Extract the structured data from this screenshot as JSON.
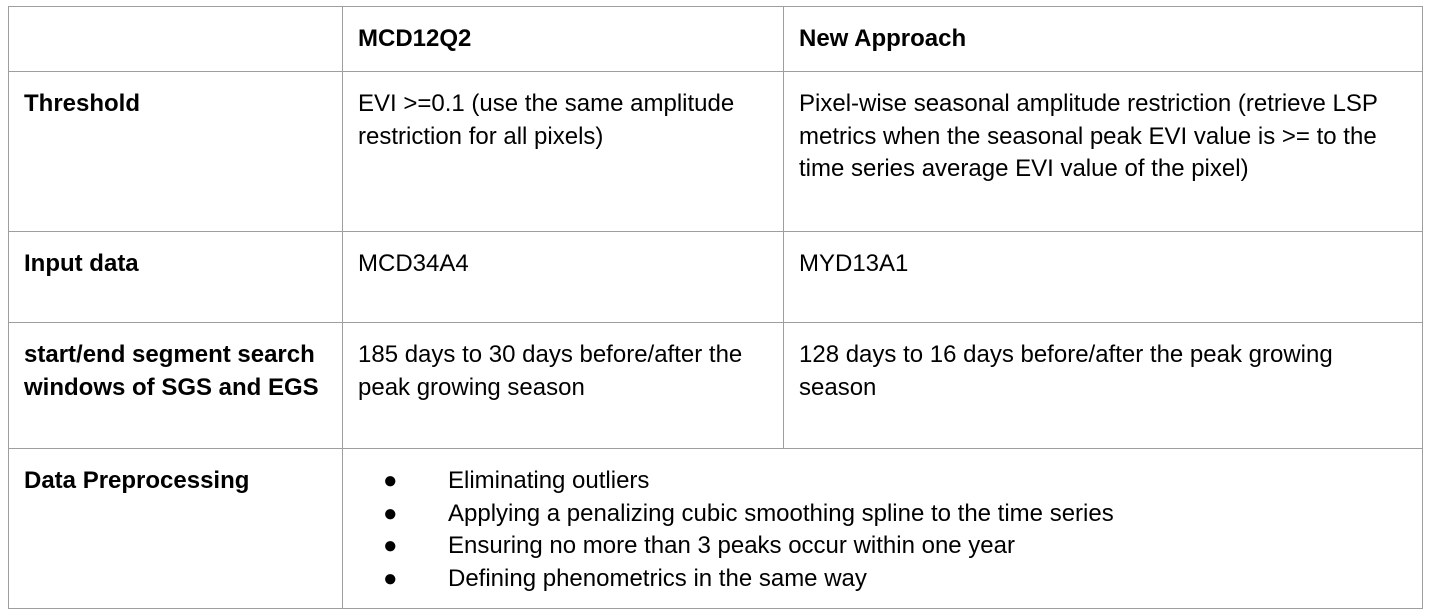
{
  "header": {
    "col1": "",
    "col2": "MCD12Q2",
    "col3": "New Approach"
  },
  "rows": [
    {
      "label": "Threshold",
      "mcd12q2": "EVI >=0.1 (use the same amplitude restriction for all pixels)",
      "new_approach": "Pixel-wise seasonal amplitude restriction (retrieve LSP metrics when the seasonal peak EVI value is >= to the time series average EVI value of the pixel)"
    },
    {
      "label": "Input data",
      "mcd12q2": "MCD34A4",
      "new_approach": "MYD13A1"
    },
    {
      "label": "start/end segment search windows of SGS and EGS",
      "mcd12q2": "185 days to 30 days before/after the peak growing season",
      "new_approach": "128 days to 16 days before/after the peak growing season"
    }
  ],
  "preprocessing": {
    "label": "Data Preprocessing",
    "bullet_glyph": "●",
    "items": [
      "Eliminating outliers",
      "Applying a penalizing cubic smoothing spline to the time series",
      "Ensuring no more than 3 peaks occur within one year",
      "Defining phenometrics in the same way"
    ]
  }
}
